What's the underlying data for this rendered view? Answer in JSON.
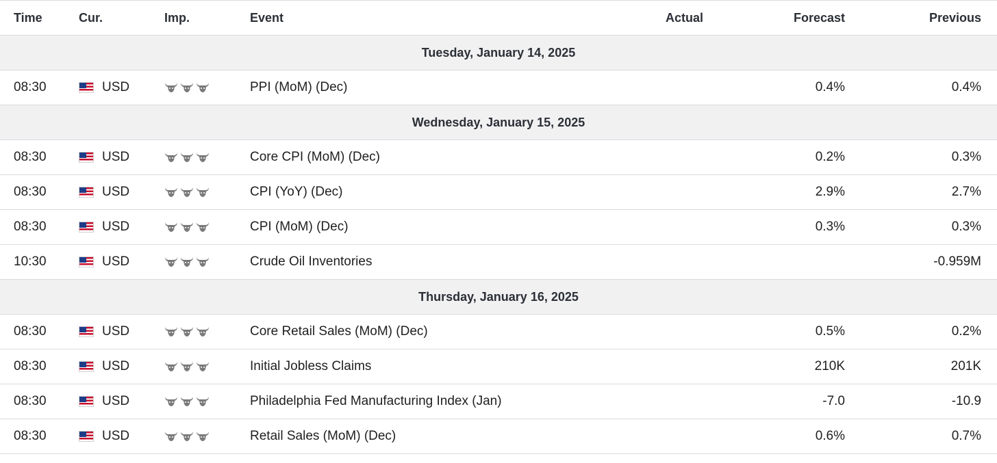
{
  "columns": {
    "time": "Time",
    "cur": "Cur.",
    "imp": "Imp.",
    "event": "Event",
    "actual": "Actual",
    "forecast": "Forecast",
    "previous": "Previous"
  },
  "colors": {
    "bull_icon": "#7a7a7a",
    "date_row_bg": "#f1f1f2",
    "border": "#d9dbdf"
  },
  "importance_icon": "bull-icon",
  "days": [
    {
      "date": "Tuesday, January 14, 2025",
      "events": [
        {
          "time": "08:30",
          "currency": "USD",
          "importance": 3,
          "event": "PPI (MoM) (Dec)",
          "actual": "",
          "forecast": "0.4%",
          "previous": "0.4%"
        }
      ]
    },
    {
      "date": "Wednesday, January 15, 2025",
      "events": [
        {
          "time": "08:30",
          "currency": "USD",
          "importance": 3,
          "event": "Core CPI (MoM) (Dec)",
          "actual": "",
          "forecast": "0.2%",
          "previous": "0.3%"
        },
        {
          "time": "08:30",
          "currency": "USD",
          "importance": 3,
          "event": "CPI (YoY) (Dec)",
          "actual": "",
          "forecast": "2.9%",
          "previous": "2.7%"
        },
        {
          "time": "08:30",
          "currency": "USD",
          "importance": 3,
          "event": "CPI (MoM) (Dec)",
          "actual": "",
          "forecast": "0.3%",
          "previous": "0.3%"
        },
        {
          "time": "10:30",
          "currency": "USD",
          "importance": 3,
          "event": "Crude Oil Inventories",
          "actual": "",
          "forecast": "",
          "previous": "-0.959M"
        }
      ]
    },
    {
      "date": "Thursday, January 16, 2025",
      "events": [
        {
          "time": "08:30",
          "currency": "USD",
          "importance": 3,
          "event": "Core Retail Sales (MoM) (Dec)",
          "actual": "",
          "forecast": "0.5%",
          "previous": "0.2%"
        },
        {
          "time": "08:30",
          "currency": "USD",
          "importance": 3,
          "event": "Initial Jobless Claims",
          "actual": "",
          "forecast": "210K",
          "previous": "201K"
        },
        {
          "time": "08:30",
          "currency": "USD",
          "importance": 3,
          "event": "Philadelphia Fed Manufacturing Index (Jan)",
          "actual": "",
          "forecast": "-7.0",
          "previous": "-10.9"
        },
        {
          "time": "08:30",
          "currency": "USD",
          "importance": 3,
          "event": "Retail Sales (MoM) (Dec)",
          "actual": "",
          "forecast": "0.6%",
          "previous": "0.7%"
        }
      ]
    }
  ]
}
